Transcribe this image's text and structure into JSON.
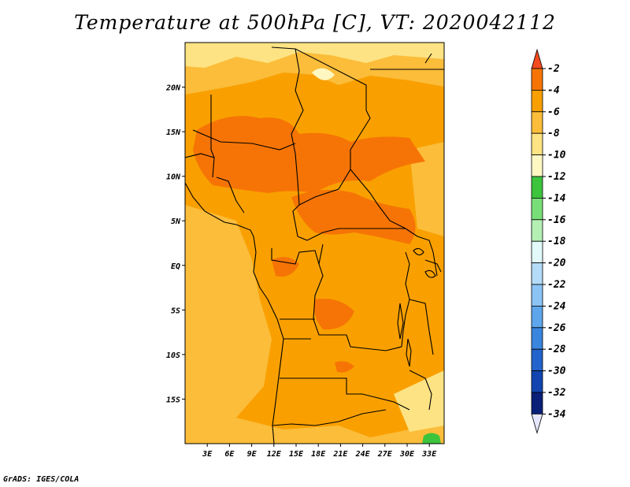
{
  "title": "Temperature at 500hPa [C], VT: 2020042112",
  "credit": "GrADS: IGES/COLA",
  "map": {
    "lon_range": [
      0,
      35
    ],
    "lat_range": [
      -20,
      25
    ],
    "x_ticks": [
      {
        "lon": 3,
        "label": "3E"
      },
      {
        "lon": 6,
        "label": "6E"
      },
      {
        "lon": 9,
        "label": "9E"
      },
      {
        "lon": 12,
        "label": "12E"
      },
      {
        "lon": 15,
        "label": "15E"
      },
      {
        "lon": 18,
        "label": "18E"
      },
      {
        "lon": 21,
        "label": "21E"
      },
      {
        "lon": 24,
        "label": "24E"
      },
      {
        "lon": 27,
        "label": "27E"
      },
      {
        "lon": 30,
        "label": "30E"
      },
      {
        "lon": 33,
        "label": "33E"
      }
    ],
    "y_ticks": [
      {
        "lat": 20,
        "label": "20N"
      },
      {
        "lat": 15,
        "label": "15N"
      },
      {
        "lat": 10,
        "label": "10N"
      },
      {
        "lat": 5,
        "label": "5N"
      },
      {
        "lat": 0,
        "label": "EQ"
      },
      {
        "lat": -5,
        "label": "5S"
      },
      {
        "lat": -10,
        "label": "10S"
      },
      {
        "lat": -15,
        "label": "15S"
      }
    ]
  },
  "colorbar": {
    "labels": [
      "-2",
      "-4",
      "-6",
      "-8",
      "-10",
      "-12",
      "-14",
      "-16",
      "-18",
      "-20",
      "-22",
      "-24",
      "-26",
      "-28",
      "-30",
      "-32",
      "-34"
    ],
    "colors": [
      "#f34a1f",
      "#f67405",
      "#f9a000",
      "#fbbd3a",
      "#fde384",
      "#fff7c2",
      "#3cc43c",
      "#78df78",
      "#b4f0b4",
      "#e3f8f8",
      "#b4dcf8",
      "#8cc3f5",
      "#5ea6ec",
      "#3a85de",
      "#2264cc",
      "#1245b0",
      "#0a1f78"
    ],
    "top_triangle_color": "#f34a1f",
    "bottom_triangle_color": "#e6e6ff"
  }
}
